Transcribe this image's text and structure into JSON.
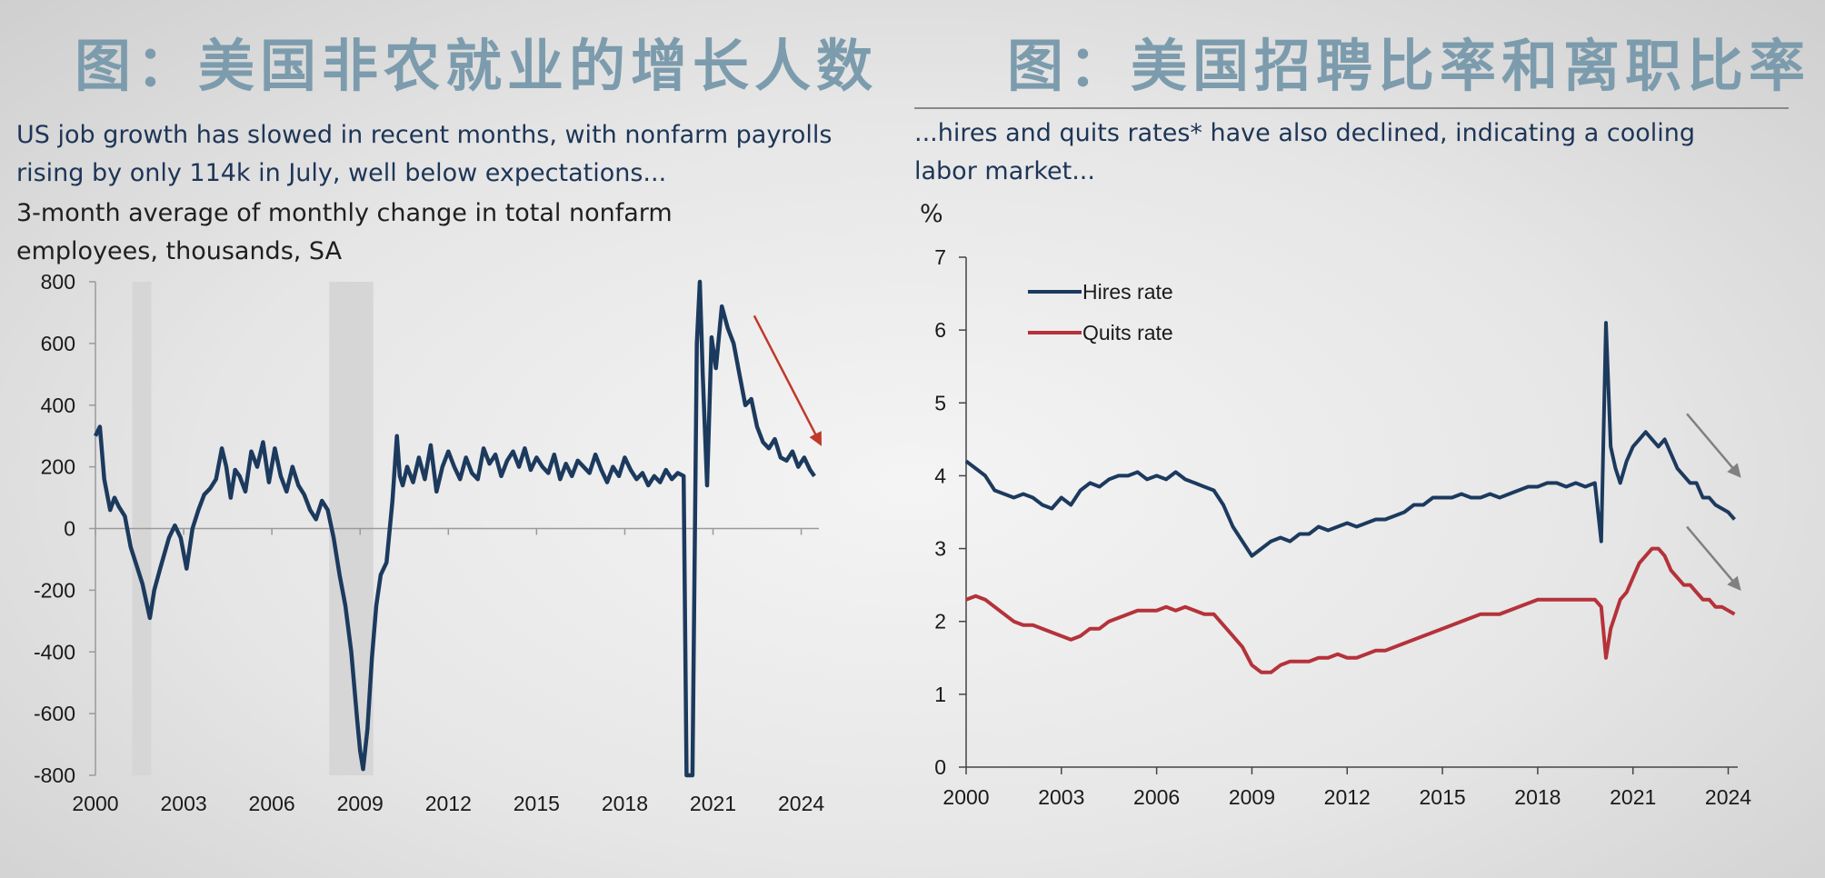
{
  "left_panel": {
    "title_cn": "图：美国非农就业的增长人数",
    "subtitle": "US job growth has slowed in recent months, with nonfarm payrolls rising by only 114k in July, well below expectations...",
    "unit_label": "3-month average of monthly change in total nonfarm employees, thousands, SA"
  },
  "right_panel": {
    "title_cn": "图：美国招聘比率和离职比率",
    "subtitle": "...hires and quits rates* have also declined, indicating a cooling labor market...",
    "unit_label": "%"
  },
  "colors": {
    "navy": "#1c3a5e",
    "red": "#b5323a",
    "recession": "#d6d6d6",
    "arrow_red": "#c0392b",
    "arrow_gray": "#808080",
    "title_blue": "#7c9cad"
  },
  "chart_data": [
    {
      "type": "line",
      "title": "",
      "xlabel": "",
      "ylabel": "",
      "xlim": [
        2000,
        2024.6
      ],
      "ylim": [
        -800,
        800
      ],
      "yticks": [
        "800",
        "600",
        "400",
        "200",
        "0",
        "-200",
        "-400",
        "-600",
        "-800"
      ],
      "xticks": [
        "2000",
        "2003",
        "2006",
        "2009",
        "2012",
        "2015",
        "2018",
        "2021",
        "2024"
      ],
      "recession_shading": [
        [
          2001.25,
          2001.9
        ],
        [
          2007.95,
          2009.45
        ]
      ],
      "trend_arrow": "red arrow pointing down from 2022.4 to 2024.7",
      "series": [
        {
          "x": [
            2000.0,
            2000.15,
            2000.3,
            2000.5,
            2000.65,
            2000.8,
            2001.0,
            2001.2,
            2001.4,
            2001.6,
            2001.85,
            2002.0,
            2002.2,
            2002.5,
            2002.7,
            2002.9,
            2003.1,
            2003.3,
            2003.5,
            2003.7,
            2003.9,
            2004.1,
            2004.3,
            2004.45,
            2004.6,
            2004.75,
            2004.9,
            2005.1,
            2005.3,
            2005.5,
            2005.7,
            2005.9,
            2006.1,
            2006.3,
            2006.5,
            2006.7,
            2006.9,
            2007.1,
            2007.3,
            2007.5,
            2007.7,
            2007.9,
            2008.1,
            2008.3,
            2008.5,
            2008.7,
            2008.9,
            2009.0,
            2009.1,
            2009.25,
            2009.4,
            2009.55,
            2009.7,
            2009.9,
            2010.1,
            2010.25,
            2010.35,
            2010.45,
            2010.6,
            2010.8,
            2011.0,
            2011.2,
            2011.4,
            2011.6,
            2011.8,
            2012.0,
            2012.2,
            2012.4,
            2012.6,
            2012.8,
            2013.0,
            2013.2,
            2013.4,
            2013.6,
            2013.8,
            2014.0,
            2014.2,
            2014.4,
            2014.6,
            2014.8,
            2015.0,
            2015.2,
            2015.4,
            2015.6,
            2015.8,
            2016.0,
            2016.2,
            2016.4,
            2016.6,
            2016.8,
            2017.0,
            2017.2,
            2017.4,
            2017.6,
            2017.8,
            2018.0,
            2018.2,
            2018.4,
            2018.6,
            2018.8,
            2019.0,
            2019.2,
            2019.4,
            2019.6,
            2019.8,
            2020.0,
            2020.1,
            2020.2,
            2020.3,
            2020.45,
            2020.55,
            2020.65,
            2020.8,
            2020.95,
            2021.1,
            2021.3,
            2021.5,
            2021.7,
            2021.9,
            2022.1,
            2022.3,
            2022.5,
            2022.7,
            2022.9,
            2023.1,
            2023.3,
            2023.5,
            2023.7,
            2023.9,
            2024.1,
            2024.3,
            2024.45
          ],
          "values": [
            300,
            330,
            160,
            60,
            100,
            70,
            40,
            -60,
            -120,
            -180,
            -290,
            -200,
            -130,
            -30,
            10,
            -30,
            -130,
            0,
            60,
            110,
            130,
            160,
            260,
            200,
            100,
            190,
            170,
            120,
            250,
            200,
            280,
            150,
            260,
            170,
            120,
            200,
            140,
            110,
            60,
            30,
            90,
            60,
            -30,
            -150,
            -250,
            -400,
            -620,
            -720,
            -780,
            -650,
            -420,
            -250,
            -150,
            -110,
            90,
            300,
            170,
            140,
            200,
            150,
            230,
            160,
            270,
            120,
            200,
            250,
            200,
            160,
            230,
            180,
            160,
            260,
            210,
            240,
            170,
            220,
            250,
            200,
            260,
            190,
            230,
            200,
            180,
            240,
            160,
            210,
            170,
            220,
            200,
            180,
            240,
            190,
            150,
            200,
            170,
            230,
            190,
            160,
            180,
            140,
            170,
            150,
            190,
            160,
            180,
            170,
            -800,
            -800,
            -800,
            600,
            800,
            500,
            140,
            620,
            520,
            720,
            650,
            600,
            500,
            400,
            420,
            330,
            280,
            260,
            290,
            230,
            220,
            250,
            200,
            230,
            190,
            170
          ]
        }
      ]
    },
    {
      "type": "line",
      "title": "",
      "xlabel": "",
      "ylabel": "%",
      "xlim": [
        2000,
        2024.3
      ],
      "ylim": [
        0,
        7
      ],
      "yticks": [
        "7",
        "6",
        "5",
        "4",
        "3",
        "2",
        "1",
        "0"
      ],
      "xticks": [
        "2000",
        "2003",
        "2006",
        "2009",
        "2012",
        "2015",
        "2018",
        "2021",
        "2024"
      ],
      "legend_position": "top-left",
      "trend_arrows": "two gray arrows pointing down-right after 2022",
      "series": [
        {
          "name": "Hires rate",
          "color": "#1c3a5e",
          "x": [
            2000.0,
            2000.3,
            2000.6,
            2000.9,
            2001.2,
            2001.5,
            2001.8,
            2002.1,
            2002.4,
            2002.7,
            2003.0,
            2003.3,
            2003.6,
            2003.9,
            2004.2,
            2004.5,
            2004.8,
            2005.1,
            2005.4,
            2005.7,
            2006.0,
            2006.3,
            2006.6,
            2006.9,
            2007.2,
            2007.5,
            2007.8,
            2008.1,
            2008.4,
            2008.7,
            2009.0,
            2009.3,
            2009.6,
            2009.9,
            2010.2,
            2010.5,
            2010.8,
            2011.1,
            2011.4,
            2011.7,
            2012.0,
            2012.3,
            2012.6,
            2012.9,
            2013.2,
            2013.5,
            2013.8,
            2014.1,
            2014.4,
            2014.7,
            2015.0,
            2015.3,
            2015.6,
            2015.9,
            2016.2,
            2016.5,
            2016.8,
            2017.1,
            2017.4,
            2017.7,
            2018.0,
            2018.3,
            2018.6,
            2018.9,
            2019.2,
            2019.5,
            2019.8,
            2020.0,
            2020.15,
            2020.3,
            2020.45,
            2020.6,
            2020.8,
            2021.0,
            2021.2,
            2021.4,
            2021.6,
            2021.8,
            2022.0,
            2022.2,
            2022.4,
            2022.6,
            2022.8,
            2023.0,
            2023.2,
            2023.4,
            2023.6,
            2023.8,
            2024.0,
            2024.2
          ],
          "values": [
            4.2,
            4.1,
            4.0,
            3.8,
            3.75,
            3.7,
            3.75,
            3.7,
            3.6,
            3.55,
            3.7,
            3.6,
            3.8,
            3.9,
            3.85,
            3.95,
            4.0,
            4.0,
            4.05,
            3.95,
            4.0,
            3.95,
            4.05,
            3.95,
            3.9,
            3.85,
            3.8,
            3.6,
            3.3,
            3.1,
            2.9,
            3.0,
            3.1,
            3.15,
            3.1,
            3.2,
            3.2,
            3.3,
            3.25,
            3.3,
            3.35,
            3.3,
            3.35,
            3.4,
            3.4,
            3.45,
            3.5,
            3.6,
            3.6,
            3.7,
            3.7,
            3.7,
            3.75,
            3.7,
            3.7,
            3.75,
            3.7,
            3.75,
            3.8,
            3.85,
            3.85,
            3.9,
            3.9,
            3.85,
            3.9,
            3.85,
            3.9,
            3.1,
            6.1,
            4.4,
            4.1,
            3.9,
            4.2,
            4.4,
            4.5,
            4.6,
            4.5,
            4.4,
            4.5,
            4.3,
            4.1,
            4.0,
            3.9,
            3.9,
            3.7,
            3.7,
            3.6,
            3.55,
            3.5,
            3.4
          ]
        },
        {
          "name": "Quits rate",
          "color": "#b5323a",
          "x": [
            2000.0,
            2000.3,
            2000.6,
            2000.9,
            2001.2,
            2001.5,
            2001.8,
            2002.1,
            2002.4,
            2002.7,
            2003.0,
            2003.3,
            2003.6,
            2003.9,
            2004.2,
            2004.5,
            2004.8,
            2005.1,
            2005.4,
            2005.7,
            2006.0,
            2006.3,
            2006.6,
            2006.9,
            2007.2,
            2007.5,
            2007.8,
            2008.1,
            2008.4,
            2008.7,
            2009.0,
            2009.3,
            2009.6,
            2009.9,
            2010.2,
            2010.5,
            2010.8,
            2011.1,
            2011.4,
            2011.7,
            2012.0,
            2012.3,
            2012.6,
            2012.9,
            2013.2,
            2013.5,
            2013.8,
            2014.1,
            2014.4,
            2014.7,
            2015.0,
            2015.3,
            2015.6,
            2015.9,
            2016.2,
            2016.5,
            2016.8,
            2017.1,
            2017.4,
            2017.7,
            2018.0,
            2018.3,
            2018.6,
            2018.9,
            2019.2,
            2019.5,
            2019.8,
            2020.0,
            2020.15,
            2020.3,
            2020.45,
            2020.6,
            2020.8,
            2021.0,
            2021.2,
            2021.4,
            2021.6,
            2021.8,
            2022.0,
            2022.2,
            2022.4,
            2022.6,
            2022.8,
            2023.0,
            2023.2,
            2023.4,
            2023.6,
            2023.8,
            2024.0,
            2024.2
          ],
          "values": [
            2.3,
            2.35,
            2.3,
            2.2,
            2.1,
            2.0,
            1.95,
            1.95,
            1.9,
            1.85,
            1.8,
            1.75,
            1.8,
            1.9,
            1.9,
            2.0,
            2.05,
            2.1,
            2.15,
            2.15,
            2.15,
            2.2,
            2.15,
            2.2,
            2.15,
            2.1,
            2.1,
            1.95,
            1.8,
            1.65,
            1.4,
            1.3,
            1.3,
            1.4,
            1.45,
            1.45,
            1.45,
            1.5,
            1.5,
            1.55,
            1.5,
            1.5,
            1.55,
            1.6,
            1.6,
            1.65,
            1.7,
            1.75,
            1.8,
            1.85,
            1.9,
            1.95,
            2.0,
            2.05,
            2.1,
            2.1,
            2.1,
            2.15,
            2.2,
            2.25,
            2.3,
            2.3,
            2.3,
            2.3,
            2.3,
            2.3,
            2.3,
            2.2,
            1.5,
            1.9,
            2.1,
            2.3,
            2.4,
            2.6,
            2.8,
            2.9,
            3.0,
            3.0,
            2.9,
            2.7,
            2.6,
            2.5,
            2.5,
            2.4,
            2.3,
            2.3,
            2.2,
            2.2,
            2.15,
            2.1
          ]
        }
      ]
    }
  ]
}
